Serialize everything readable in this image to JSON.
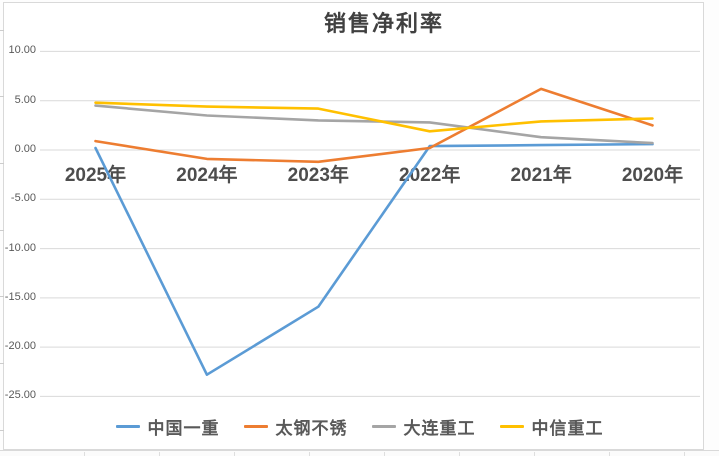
{
  "chart_data": {
    "type": "line",
    "title": "销售净利率",
    "categories": [
      "2025年",
      "2024年",
      "2023年",
      "2022年",
      "2021年",
      "2020年"
    ],
    "series": [
      {
        "name": "中国一重",
        "color": "#5B9BD5",
        "values": [
          0.2,
          -22.8,
          -15.9,
          0.4,
          0.5,
          0.6
        ]
      },
      {
        "name": "太钢不锈",
        "color": "#ED7D31",
        "values": [
          0.9,
          -0.9,
          -1.2,
          0.2,
          6.2,
          2.5
        ]
      },
      {
        "name": "大连重工",
        "color": "#A5A5A5",
        "values": [
          4.5,
          3.5,
          3.0,
          2.8,
          1.3,
          0.7
        ]
      },
      {
        "name": "中信重工",
        "color": "#FFC000",
        "values": [
          4.8,
          4.4,
          4.2,
          1.9,
          2.9,
          3.2
        ]
      }
    ],
    "y_ticks": [
      10,
      5,
      0,
      -5,
      -10,
      -15,
      -20,
      -25
    ],
    "y_tick_labels": [
      "10.00",
      "5.00",
      "0.00",
      "-5.00",
      "-10.00",
      "-15.00",
      "-20.00",
      "-25.00"
    ],
    "ylim": [
      -25,
      10
    ],
    "grid": true,
    "legend_position": "bottom",
    "gridline_color": "#D9D9D9",
    "axis_text_color": "#595959"
  }
}
